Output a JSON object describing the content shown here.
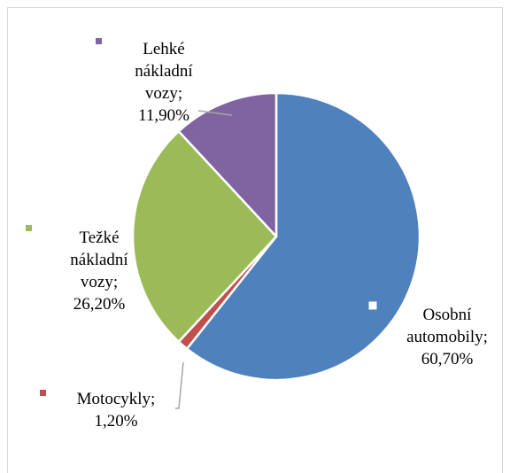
{
  "chart_data": {
    "type": "pie",
    "categories": [
      "Osobní automobily",
      "Motocykly",
      "Težké nákladní vozy",
      "Lehké nákladní vozy"
    ],
    "values": [
      60.7,
      1.2,
      26.2,
      11.9
    ],
    "value_labels": [
      "60,70%",
      "1,20%",
      "26,20%",
      "11,90%"
    ],
    "label_separator": ";",
    "colors": [
      "#4f81bd",
      "#c0504d",
      "#9bbb59",
      "#8064a2"
    ]
  }
}
